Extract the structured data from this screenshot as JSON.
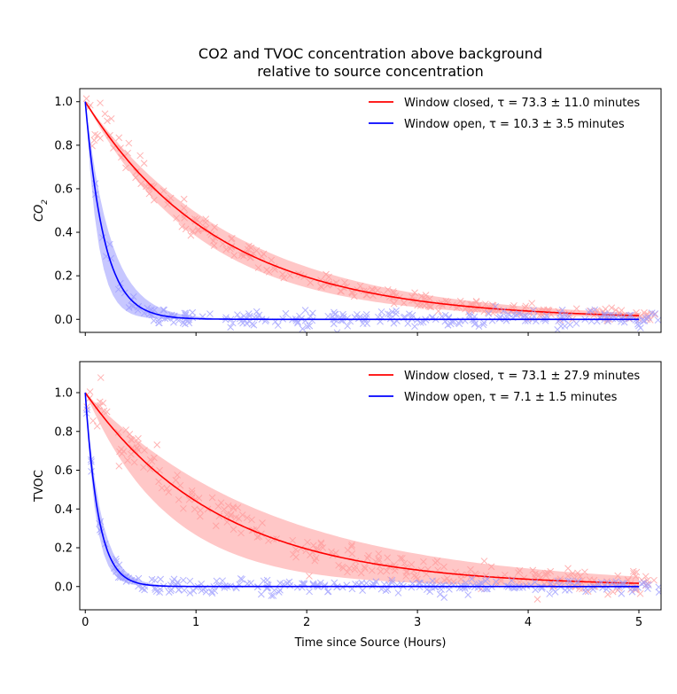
{
  "title_line1": "CO2 and TVOC concentration above background",
  "title_line2": "relative to source concentration",
  "colors": {
    "closed": "#ff0000",
    "open": "#0000ff",
    "closed_band": "#ff9999",
    "open_band": "#9999ff"
  },
  "chart_data": [
    {
      "type": "line",
      "panel": "top",
      "ylabel": "CO",
      "ylabel_sub": "2",
      "xlabel": "",
      "xlim": [
        -0.05,
        5.2
      ],
      "ylim": [
        -0.06,
        1.06
      ],
      "xticks": [
        0,
        1,
        2,
        3,
        4,
        5
      ],
      "yticks": [
        "0.0",
        "0.2",
        "0.4",
        "0.6",
        "0.8",
        "1.0"
      ],
      "grid": false,
      "legend": "top-right",
      "series": [
        {
          "name": "Window closed, τ = 73.3 ± 11.0 minutes",
          "legend_text": "Window closed, τ = 73.3 ± 11.0 minutes",
          "tau_minutes": 73.3,
          "tau_err_minutes": 11.0,
          "color": "#ff0000",
          "scatter_xmax": 5.2,
          "noise": 0.025
        },
        {
          "name": "Window open, τ = 10.3 ± 3.5 minutes",
          "legend_text": "Window open, τ = 10.3 ± 3.5 minutes",
          "tau_minutes": 10.3,
          "tau_err_minutes": 3.5,
          "color": "#0000ff",
          "scatter_xmax": 5.2,
          "noise": 0.03
        }
      ]
    },
    {
      "type": "line",
      "panel": "bottom",
      "ylabel": "TVOC",
      "ylabel_sub": "",
      "xlabel": "Time since Source (Hours)",
      "xlim": [
        -0.05,
        5.2
      ],
      "ylim": [
        -0.12,
        1.16
      ],
      "xticks": [
        0,
        1,
        2,
        3,
        4,
        5
      ],
      "yticks": [
        "0.0",
        "0.2",
        "0.4",
        "0.6",
        "0.8",
        "1.0"
      ],
      "grid": false,
      "legend": "top-right",
      "series": [
        {
          "name": "Window closed, τ = 73.1 ± 27.9 minutes",
          "legend_text": "Window closed, τ = 73.1 ± 27.9 minutes",
          "tau_minutes": 73.1,
          "tau_err_minutes": 27.9,
          "color": "#ff0000",
          "scatter_xmax": 5.2,
          "noise": 0.06
        },
        {
          "name": "Window open, τ = 7.1 ± 1.5 minutes",
          "legend_text": "Window open, τ = 7.1 ± 1.5 minutes",
          "tau_minutes": 7.1,
          "tau_err_minutes": 1.5,
          "color": "#0000ff",
          "scatter_xmax": 5.2,
          "noise": 0.03
        }
      ]
    }
  ]
}
